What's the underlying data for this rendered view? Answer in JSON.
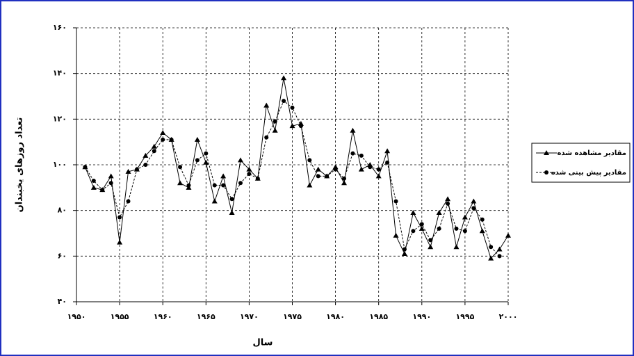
{
  "chart_data": {
    "type": "line",
    "x_label": "سال",
    "y_label": "تعداد روزهای یخبندان",
    "x": [
      1951,
      1952,
      1953,
      1954,
      1955,
      1956,
      1957,
      1958,
      1959,
      1960,
      1961,
      1962,
      1963,
      1964,
      1965,
      1966,
      1967,
      1968,
      1969,
      1970,
      1971,
      1972,
      1973,
      1974,
      1975,
      1976,
      1977,
      1978,
      1979,
      1980,
      1981,
      1982,
      1983,
      1984,
      1985,
      1986,
      1987,
      1988,
      1989,
      1990,
      1991,
      1992,
      1993,
      1994,
      1995,
      1996,
      1997,
      1998,
      1999,
      2000
    ],
    "series": [
      {
        "name": "مقادیر مشاهده شده",
        "color": "#000000",
        "marker": "triangle",
        "dashed": false,
        "values": [
          99,
          90,
          89,
          95,
          66,
          97,
          98,
          104,
          108,
          114,
          111,
          92,
          90,
          111,
          101,
          84,
          95,
          79,
          102,
          98,
          94,
          126,
          115,
          138,
          117,
          118,
          91,
          98,
          95,
          99,
          92,
          115,
          98,
          100,
          95,
          106,
          69,
          61,
          79,
          72,
          64,
          79,
          85,
          64,
          77,
          84,
          71,
          59,
          63,
          69
        ]
      },
      {
        "name": "مقادیر پیش بینی شده",
        "color": "#000000",
        "marker": "circle",
        "dashed": true,
        "values": [
          99,
          93,
          89,
          92,
          77,
          84,
          98,
          100,
          106,
          111,
          111,
          99,
          91,
          102,
          105,
          91,
          91,
          85,
          92,
          96,
          94,
          112,
          119,
          128,
          125,
          117,
          102,
          95,
          95,
          98,
          94,
          105,
          104,
          99,
          98,
          101,
          84,
          63,
          71,
          74,
          67,
          72,
          83,
          72,
          71,
          81,
          76,
          64,
          60,
          null
        ]
      }
    ],
    "xlim": [
      1950,
      2000
    ],
    "xticks": [
      {
        "value": 1950,
        "label": "۱۹۵۰"
      },
      {
        "value": 1955,
        "label": "۱۹۵۵"
      },
      {
        "value": 1960,
        "label": "۱۹۶۰"
      },
      {
        "value": 1965,
        "label": "۱۹۶۵"
      },
      {
        "value": 1970,
        "label": "۱۹۷۰"
      },
      {
        "value": 1975,
        "label": "۱۹۷۵"
      },
      {
        "value": 1980,
        "label": "۱۹۸۰"
      },
      {
        "value": 1985,
        "label": "۱۹۸۵"
      },
      {
        "value": 1990,
        "label": "۱۹۹۰"
      },
      {
        "value": 1995,
        "label": "۱۹۹۵"
      },
      {
        "value": 2000,
        "label": "۲۰۰۰"
      }
    ],
    "ylim": [
      40,
      160
    ],
    "yticks": [
      {
        "value": 40,
        "label": "۴۰"
      },
      {
        "value": 60,
        "label": "۶۰"
      },
      {
        "value": 80,
        "label": "۸۰"
      },
      {
        "value": 100,
        "label": "۱۰۰"
      },
      {
        "value": 120,
        "label": "۱۲۰"
      },
      {
        "value": 140,
        "label": "۱۴۰"
      },
      {
        "value": 160,
        "label": "۱۶۰"
      }
    ],
    "grid": true,
    "legend": "right"
  }
}
